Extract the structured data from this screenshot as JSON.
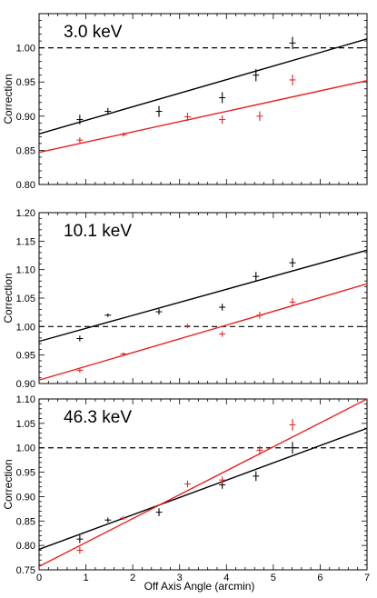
{
  "chart_data": [
    {
      "type": "scatter",
      "title": "3.0 keV",
      "ylabel": "Correction",
      "xlabel": "",
      "xlim": [
        0,
        7
      ],
      "ylim": [
        0.8,
        1.05
      ],
      "yticks": [
        "0.80",
        "0.85",
        "0.90",
        "0.95",
        "1.00"
      ],
      "xticks": [],
      "reference_line": {
        "y": 1.0,
        "style": "dashed",
        "color": "#000000"
      },
      "series": [
        {
          "color": "#000000",
          "points": [
            {
              "x": 0.87,
              "y": 0.895,
              "err": 0.007
            },
            {
              "x": 1.47,
              "y": 0.907,
              "err": 0.005
            },
            {
              "x": 2.56,
              "y": 0.907,
              "err": 0.008
            },
            {
              "x": 3.91,
              "y": 0.927,
              "err": 0.008
            },
            {
              "x": 4.63,
              "y": 0.96,
              "err": 0.009
            },
            {
              "x": 5.41,
              "y": 1.007,
              "err": 0.009
            }
          ],
          "fit": {
            "x": [
              0,
              7
            ],
            "y": [
              0.874,
              1.013
            ]
          }
        },
        {
          "color": "#e8201c",
          "points": [
            {
              "x": 0.87,
              "y": 0.865,
              "err": 0.004
            },
            {
              "x": 1.8,
              "y": 0.873,
              "err": 0.003
            },
            {
              "x": 3.17,
              "y": 0.899,
              "err": 0.006
            },
            {
              "x": 3.91,
              "y": 0.895,
              "err": 0.006
            },
            {
              "x": 4.71,
              "y": 0.9,
              "err": 0.007
            },
            {
              "x": 5.41,
              "y": 0.953,
              "err": 0.008
            }
          ],
          "fit": {
            "x": [
              0,
              7
            ],
            "y": [
              0.847,
              0.952
            ]
          }
        }
      ]
    },
    {
      "type": "scatter",
      "title": "10.1 keV",
      "ylabel": "Correction",
      "xlabel": "",
      "xlim": [
        0,
        7
      ],
      "ylim": [
        0.9,
        1.2
      ],
      "yticks": [
        "0.90",
        "0.95",
        "1.00",
        "1.05",
        "1.10",
        "1.15",
        "1.20"
      ],
      "xticks": [],
      "reference_line": {
        "y": 1.0,
        "style": "dashed",
        "color": "#000000"
      },
      "series": [
        {
          "color": "#000000",
          "points": [
            {
              "x": 0.87,
              "y": 0.979,
              "err": 0.005
            },
            {
              "x": 1.47,
              "y": 1.02,
              "err": 0.003
            },
            {
              "x": 2.56,
              "y": 1.026,
              "err": 0.005
            },
            {
              "x": 3.91,
              "y": 1.034,
              "err": 0.006
            },
            {
              "x": 4.63,
              "y": 1.088,
              "err": 0.008
            },
            {
              "x": 5.41,
              "y": 1.112,
              "err": 0.008
            }
          ],
          "fit": {
            "x": [
              0,
              7
            ],
            "y": [
              0.974,
              1.134
            ]
          }
        },
        {
          "color": "#e8201c",
          "points": [
            {
              "x": 0.87,
              "y": 0.923,
              "err": 0.004
            },
            {
              "x": 1.8,
              "y": 0.952,
              "err": 0.003
            },
            {
              "x": 3.17,
              "y": 1.001,
              "err": 0.004
            },
            {
              "x": 3.91,
              "y": 0.987,
              "err": 0.005
            },
            {
              "x": 4.71,
              "y": 1.02,
              "err": 0.006
            },
            {
              "x": 5.41,
              "y": 1.043,
              "err": 0.007
            }
          ],
          "fit": {
            "x": [
              0,
              7
            ],
            "y": [
              0.906,
              1.075
            ]
          }
        }
      ]
    },
    {
      "type": "scatter",
      "title": "46.3 keV",
      "ylabel": "Correction",
      "xlabel": "Off Axis Angle (arcmin)",
      "xlim": [
        0,
        7
      ],
      "ylim": [
        0.75,
        1.1
      ],
      "yticks": [
        "0.75",
        "0.80",
        "0.85",
        "0.90",
        "0.95",
        "1.00",
        "1.05",
        "1.10"
      ],
      "xticks": [
        "0",
        "1",
        "2",
        "3",
        "4",
        "5",
        "6",
        "7"
      ],
      "reference_line": {
        "y": 1.0,
        "style": "dashed",
        "color": "#000000"
      },
      "series": [
        {
          "color": "#000000",
          "points": [
            {
              "x": 0.87,
              "y": 0.813,
              "err": 0.008
            },
            {
              "x": 1.47,
              "y": 0.852,
              "err": 0.005
            },
            {
              "x": 2.56,
              "y": 0.868,
              "err": 0.008
            },
            {
              "x": 3.91,
              "y": 0.924,
              "err": 0.008
            },
            {
              "x": 4.63,
              "y": 0.942,
              "err": 0.01
            },
            {
              "x": 5.41,
              "y": 1.0,
              "err": 0.012
            }
          ],
          "fit": {
            "x": [
              0,
              7
            ],
            "y": [
              0.792,
              1.04
            ]
          }
        },
        {
          "color": "#e8201c",
          "points": [
            {
              "x": 0.87,
              "y": 0.79,
              "err": 0.007
            },
            {
              "x": 1.8,
              "y": 0.856,
              "err": 0.004
            },
            {
              "x": 3.17,
              "y": 0.926,
              "err": 0.007
            },
            {
              "x": 3.91,
              "y": 0.934,
              "err": 0.007
            },
            {
              "x": 4.71,
              "y": 0.995,
              "err": 0.009
            },
            {
              "x": 5.41,
              "y": 1.047,
              "err": 0.012
            }
          ],
          "fit": {
            "x": [
              0,
              7
            ],
            "y": [
              0.757,
              1.1
            ]
          }
        }
      ]
    }
  ]
}
